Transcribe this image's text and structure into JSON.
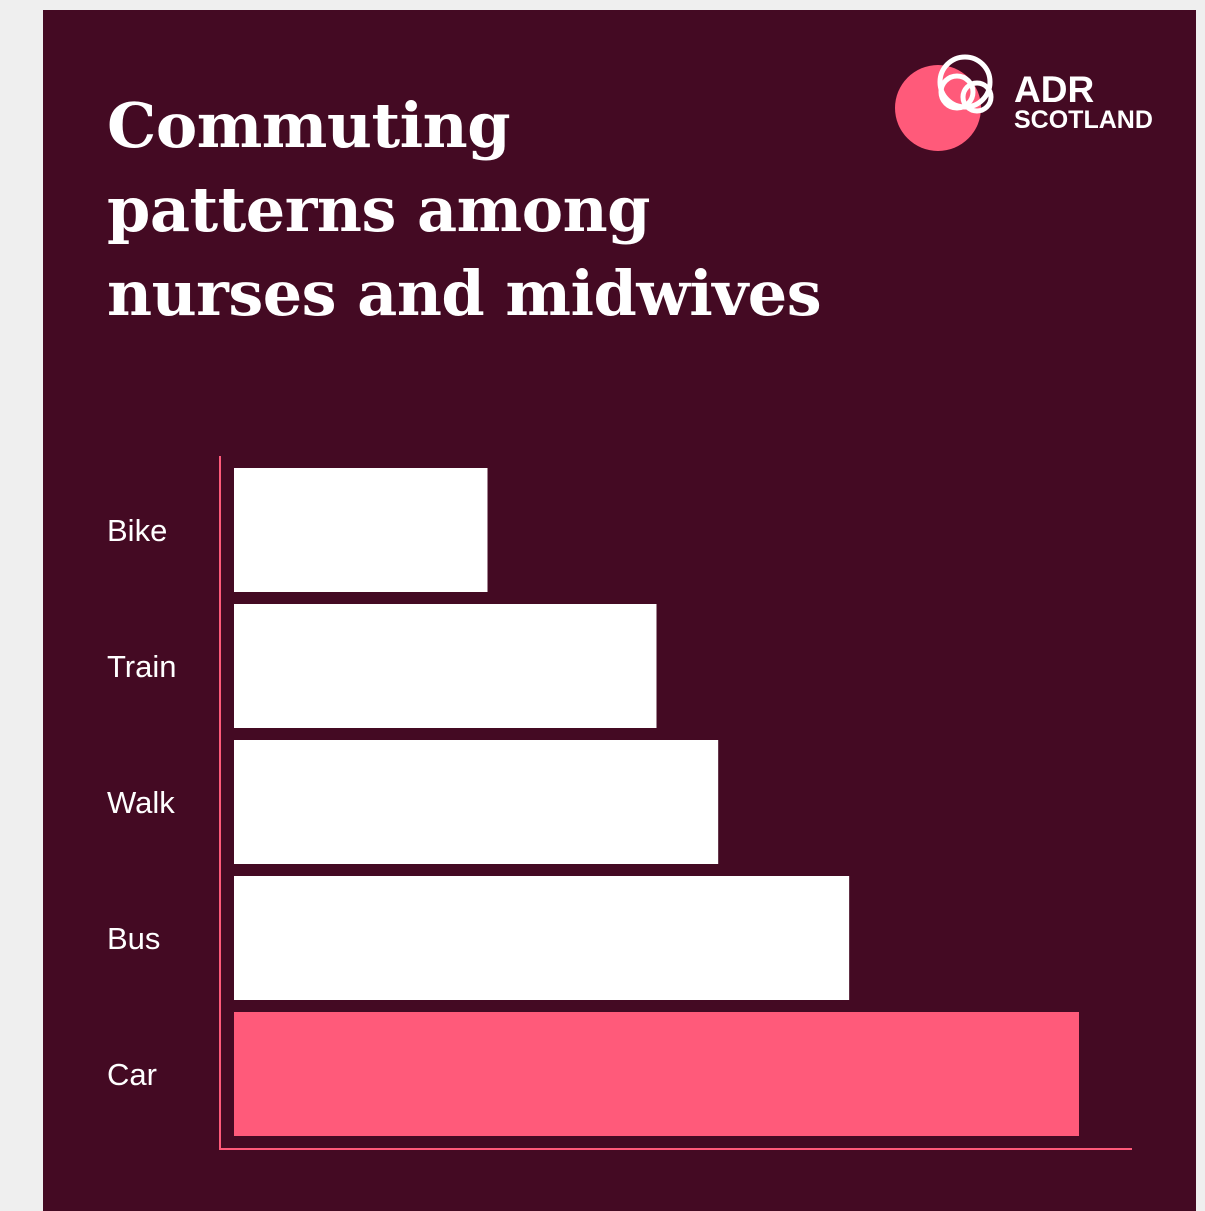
{
  "title": "Commuting patterns among nurses and midwives",
  "logo": {
    "line1": "ADR",
    "line2": "SCOTLAND"
  },
  "colors": {
    "background": "#440a23",
    "bar_default": "#ffffff",
    "bar_highlight": "#ff5a7a",
    "axis": "#ff5a7a",
    "page": "#efefef"
  },
  "chart_data": {
    "type": "bar",
    "orientation": "horizontal",
    "categories": [
      "Bike",
      "Train",
      "Walk",
      "Bus",
      "Car"
    ],
    "values": [
      30,
      50,
      57.3,
      72.8,
      100
    ],
    "highlight": "Car",
    "title": "Commuting patterns among nurses and midwives",
    "xlabel": "",
    "ylabel": "",
    "xlim": [
      0,
      100
    ],
    "grid": false,
    "legend": "none",
    "value_axis_labels_shown": false
  }
}
